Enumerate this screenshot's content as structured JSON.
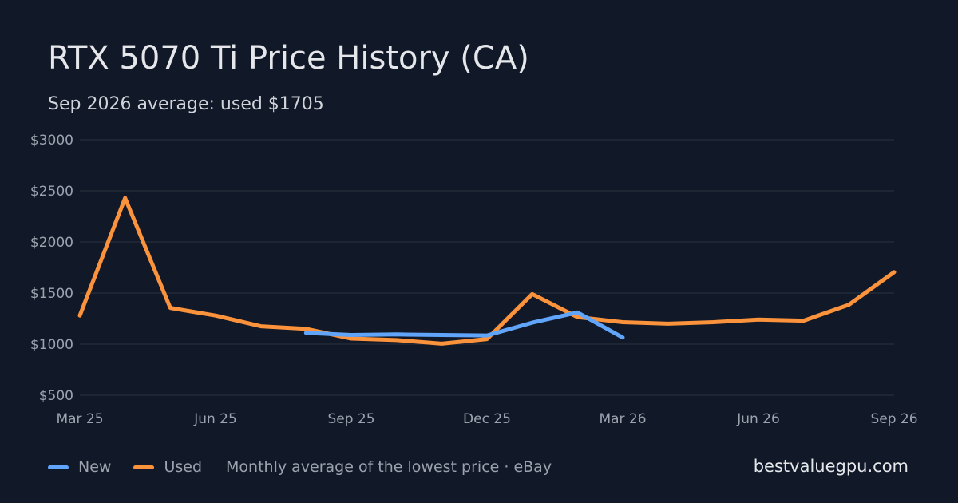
{
  "header": {
    "title": "RTX 5070 Ti Price History (CA)",
    "subtitle": "Sep 2026 average: used $1705"
  },
  "colors": {
    "background": "#111827",
    "grid": "#2a3342",
    "tick_text": "#9ca3af",
    "new": "#60a5fa",
    "used": "#fb923c"
  },
  "chart_data": {
    "type": "line",
    "title": "RTX 5070 Ti Price History (CA)",
    "xlabel": "",
    "ylabel": "",
    "x": [
      "2025-03",
      "2025-04",
      "2025-05",
      "2025-06",
      "2025-07",
      "2025-08",
      "2025-09",
      "2025-10",
      "2025-11",
      "2025-12",
      "2026-01",
      "2026-02",
      "2026-03",
      "2026-04",
      "2026-05",
      "2026-06",
      "2026-07",
      "2026-08",
      "2026-09"
    ],
    "x_tick_labels": [
      "Mar 25",
      "Jun 25",
      "Sep 25",
      "Dec 25",
      "Mar 26",
      "Jun 26",
      "Sep 26"
    ],
    "x_tick_months": [
      "2025-03",
      "2025-06",
      "2025-09",
      "2025-12",
      "2026-03",
      "2026-06",
      "2026-09"
    ],
    "y_ticks": [
      500,
      1000,
      1500,
      2000,
      2500,
      3000
    ],
    "y_tick_labels": [
      "$500",
      "$1000",
      "$1500",
      "$2000",
      "$2500",
      "$3000"
    ],
    "ylim": [
      500,
      3000
    ],
    "grid": true,
    "legend_position": "bottom-left",
    "series": [
      {
        "name": "New",
        "color": "#60a5fa",
        "values": [
          null,
          null,
          null,
          null,
          null,
          1110,
          1090,
          1095,
          1090,
          1085,
          1210,
          1310,
          1065,
          null,
          null,
          null,
          null,
          null,
          null
        ]
      },
      {
        "name": "Used",
        "color": "#fb923c",
        "values": [
          1280,
          2430,
          1355,
          1280,
          1175,
          1150,
          1055,
          1040,
          1005,
          1050,
          1490,
          1265,
          1215,
          1200,
          1215,
          1240,
          1230,
          1385,
          1705
        ]
      }
    ]
  },
  "legend": {
    "items": [
      {
        "label": "New",
        "color": "#60a5fa"
      },
      {
        "label": "Used",
        "color": "#fb923c"
      }
    ],
    "note": "Monthly average of the lowest price · eBay"
  },
  "brand": "bestvaluegpu.com"
}
